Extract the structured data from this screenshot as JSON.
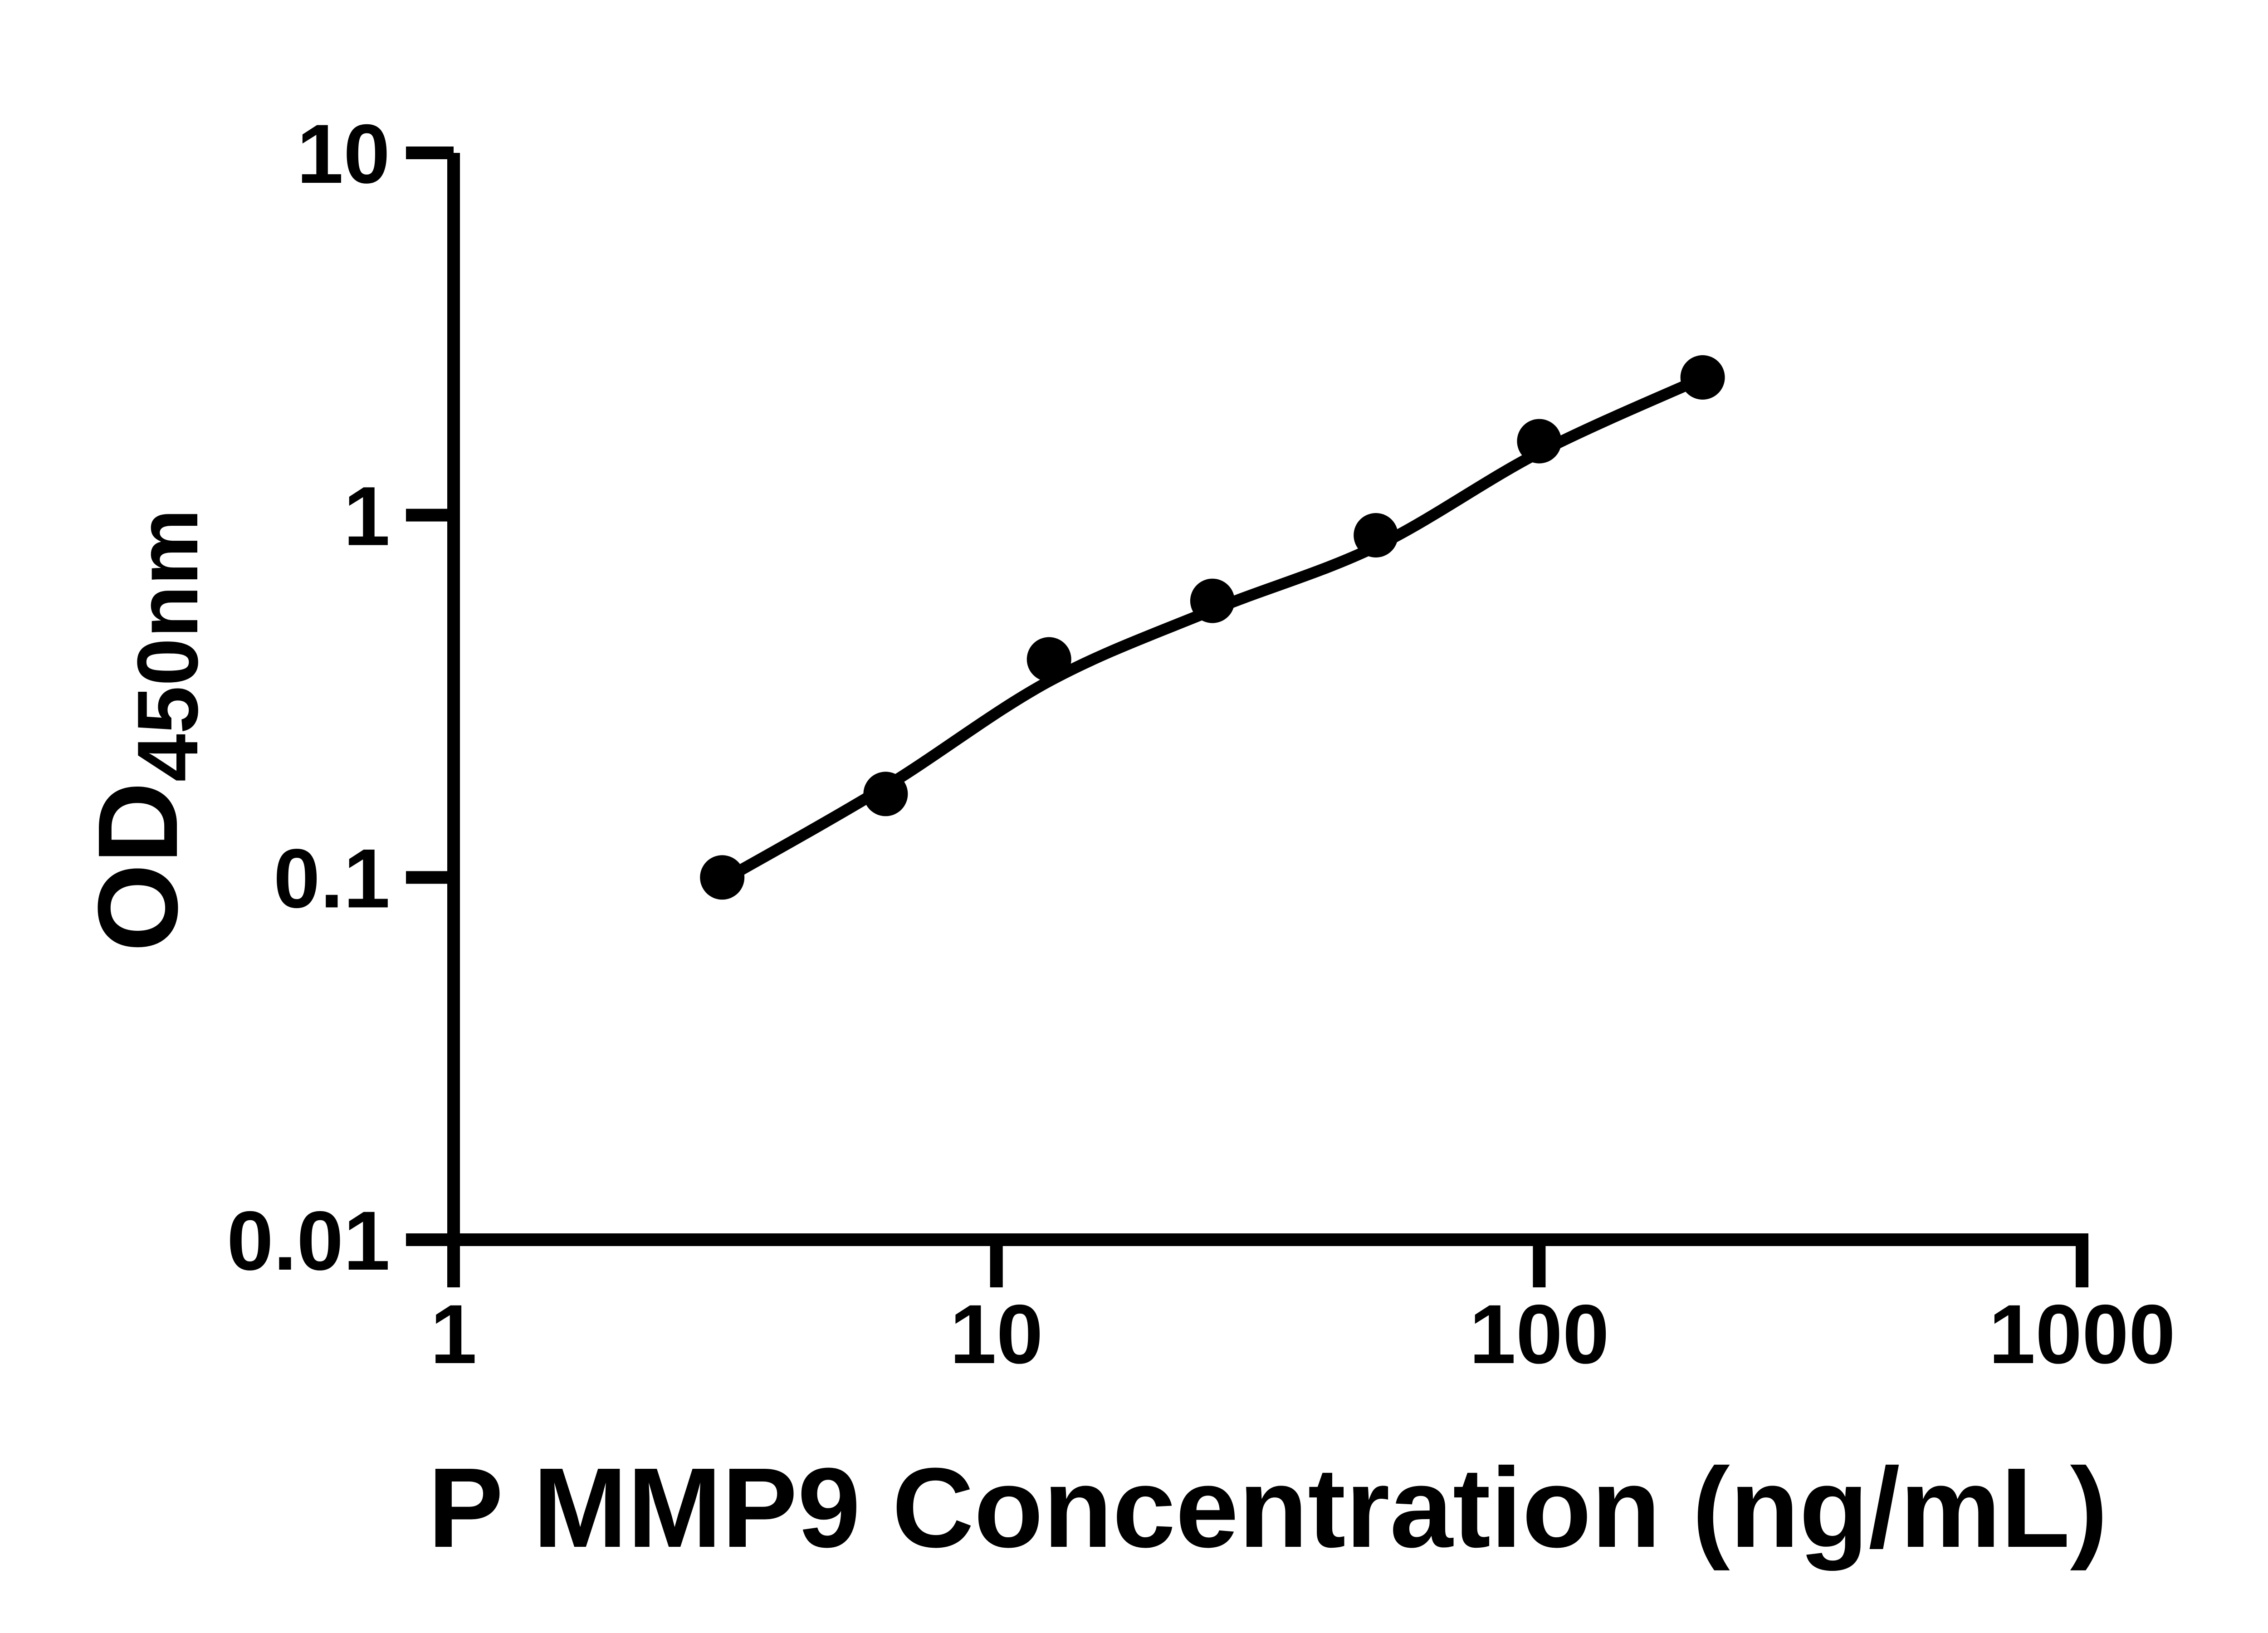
{
  "figure": {
    "background_color": "#ffffff",
    "ink_color": "#000000"
  },
  "chart_data": {
    "type": "scatter",
    "subtype": "standard-curve-with-fitted-line",
    "title": "",
    "xlabel": "P MMP9 Concentration (ng/mL)",
    "ylabel_base": "OD",
    "ylabel_subscript": "450nm",
    "x_scale": "log10",
    "y_scale": "log10",
    "xlim": [
      1,
      1000
    ],
    "ylim": [
      0.01,
      10
    ],
    "grid": false,
    "legend_position": "none",
    "x_ticks": [
      {
        "value": 1,
        "label": "1"
      },
      {
        "value": 10,
        "label": "10"
      },
      {
        "value": 100,
        "label": "100"
      },
      {
        "value": 1000,
        "label": "1000"
      }
    ],
    "y_ticks": [
      {
        "value": 10,
        "label": "10"
      },
      {
        "value": 1,
        "label": "1"
      },
      {
        "value": 0.1,
        "label": "0.1"
      },
      {
        "value": 0.01,
        "label": "0.01"
      }
    ],
    "series": [
      {
        "name": "standard-curve-points",
        "marker": "filled-circle",
        "color": "#000000",
        "x": [
          3.125,
          6.25,
          12.5,
          25,
          50,
          100,
          200
        ],
        "od": [
          0.1,
          0.17,
          0.4,
          0.58,
          0.88,
          1.6,
          2.4
        ]
      }
    ],
    "trend": {
      "name": "fitted-curve",
      "color": "#000000",
      "x": [
        3.125,
        6.25,
        12.5,
        25,
        50,
        100,
        200
      ],
      "od": [
        0.098,
        0.178,
        0.348,
        0.547,
        0.819,
        1.49,
        2.39
      ]
    }
  }
}
